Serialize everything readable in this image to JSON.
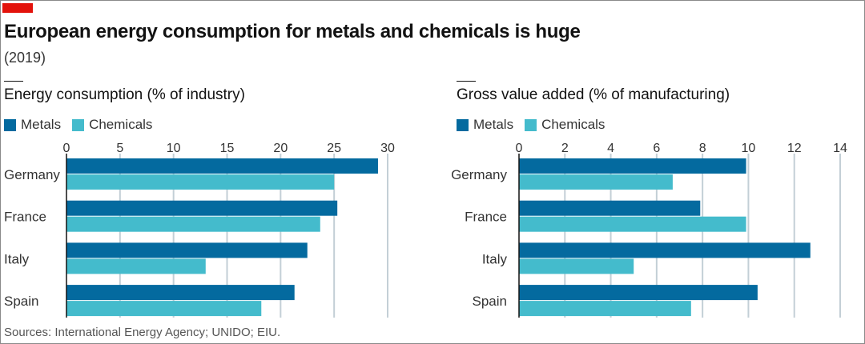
{
  "header": {
    "title": "European energy consumption for metals and chemicals is huge",
    "subtitle": "(2019)"
  },
  "legend": {
    "metals": "Metals",
    "chemicals": "Chemicals"
  },
  "colors": {
    "metals": "#046a9f",
    "chemicals": "#44bbcc",
    "brand_red": "#e3120b",
    "grid": "#c3cfd6"
  },
  "footer": {
    "source": "Sources: International Energy Agency; UNIDO; EIU."
  },
  "chart_data": [
    {
      "type": "bar",
      "orientation": "horizontal",
      "title": "Energy consumption (% of industry)",
      "categories": [
        "Germany",
        "France",
        "Italy",
        "Spain"
      ],
      "series": [
        {
          "name": "Metals",
          "values": [
            29.1,
            25.3,
            22.5,
            21.3
          ]
        },
        {
          "name": "Chemicals",
          "values": [
            25.0,
            23.7,
            13.0,
            18.2
          ]
        }
      ],
      "xlim": [
        0,
        30
      ],
      "xticks": [
        0,
        5,
        10,
        15,
        20,
        25,
        30
      ],
      "grid": true,
      "legend": "top-left"
    },
    {
      "type": "bar",
      "orientation": "horizontal",
      "title": "Gross value added (% of manufacturing)",
      "categories": [
        "Germany",
        "France",
        "Italy",
        "Spain"
      ],
      "series": [
        {
          "name": "Metals",
          "values": [
            9.9,
            7.9,
            12.7,
            10.4
          ]
        },
        {
          "name": "Chemicals",
          "values": [
            6.7,
            9.9,
            5.0,
            7.5
          ]
        }
      ],
      "xlim": [
        0,
        14
      ],
      "xticks": [
        0,
        2,
        4,
        6,
        8,
        10,
        12,
        14
      ],
      "grid": true,
      "legend": "top-left"
    }
  ]
}
